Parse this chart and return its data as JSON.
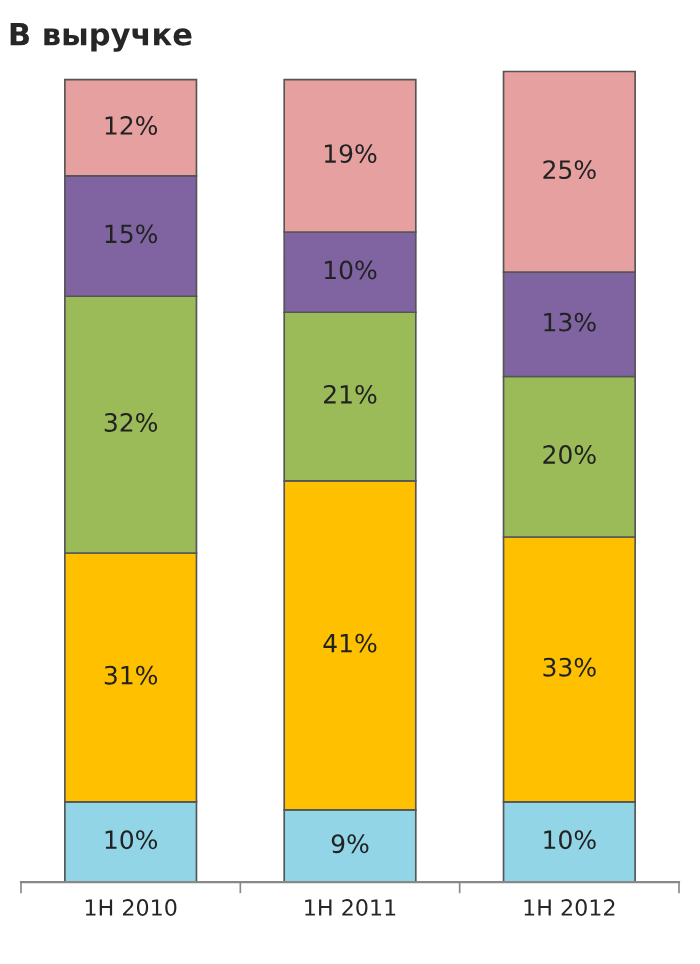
{
  "chart_data": {
    "type": "bar",
    "title": "В выручке",
    "stacked": true,
    "categories": [
      "1H 2010",
      "1H 2011",
      "1H 2012"
    ],
    "series": [
      {
        "color": "#92d5e6",
        "values": [
          10,
          9,
          10
        ],
        "value_labels": [
          "10%",
          "9%",
          "10%"
        ]
      },
      {
        "color": "#ffc000",
        "values": [
          31,
          41,
          33
        ],
        "value_labels": [
          "31%",
          "41%",
          "33%"
        ]
      },
      {
        "color": "#9bbb59",
        "values": [
          32,
          21,
          20
        ],
        "value_labels": [
          "32%",
          "21%",
          "20%"
        ]
      },
      {
        "color": "#8064a2",
        "values": [
          15,
          10,
          13
        ],
        "value_labels": [
          "15%",
          "10%",
          "13%"
        ]
      },
      {
        "color": "#e6a0a0",
        "values": [
          12,
          19,
          25
        ],
        "value_labels": [
          "12%",
          "19%",
          "25%"
        ]
      }
    ]
  }
}
